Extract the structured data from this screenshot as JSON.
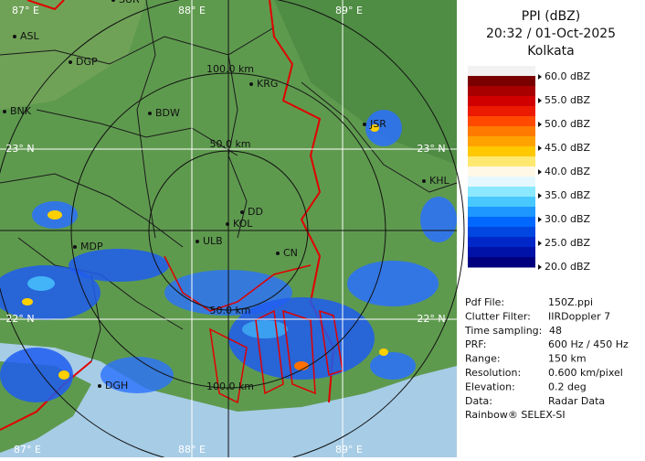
{
  "header": {
    "title": "PPI (dBZ)",
    "time": "20:32 / 01-Oct-2025",
    "station": "Kolkata"
  },
  "legend": {
    "labels": [
      "60.0 dBZ",
      "55.0 dBZ",
      "50.0 dBZ",
      "45.0 dBZ",
      "40.0 dBZ",
      "35.0 dBZ",
      "30.0 dBZ",
      "25.0 dBZ",
      "20.0 dBZ"
    ],
    "colors": [
      "#f2f2f2",
      "#7a0000",
      "#a80000",
      "#d00000",
      "#ec1a00",
      "#ff4a00",
      "#ff7a00",
      "#ffa200",
      "#ffc800",
      "#ffe870",
      "#fff8e6",
      "#e6f8ff",
      "#8ce8ff",
      "#48c8ff",
      "#1e98ff",
      "#0068ff",
      "#0046e0",
      "#0028c8",
      "#0012a8",
      "#00007e"
    ]
  },
  "info": {
    "rows": [
      [
        "Pdf File:",
        "150Z.ppi"
      ],
      [
        "Clutter Filter:",
        "IIRDoppler 7"
      ],
      [
        "Time sampling:",
        "48"
      ],
      [
        "PRF:",
        "600 Hz / 450 Hz"
      ],
      [
        "Range:",
        "150 km"
      ],
      [
        "Resolution:",
        "0.600 km/pixel"
      ],
      [
        "Elevation:",
        "0.2 deg"
      ],
      [
        "Data:",
        "Radar Data"
      ]
    ],
    "footer": "Rainbow® SELEX-SI"
  },
  "map": {
    "grid_labels": [
      "87° E",
      "88° E",
      "89° E",
      "23° N",
      "23° N",
      "22° N",
      "22° N",
      "87° E",
      "88° E",
      "89° E"
    ],
    "range_labels": [
      "100.0 km",
      "50.0 km",
      "50.0 km",
      "100.0 km"
    ],
    "cities": [
      "SUR",
      "ASL",
      "DGP",
      "BNK",
      "BDW",
      "KRG",
      "JSR",
      "KHL",
      "DD",
      "KOL",
      "ULB",
      "CN",
      "MDP",
      "DGH"
    ]
  }
}
